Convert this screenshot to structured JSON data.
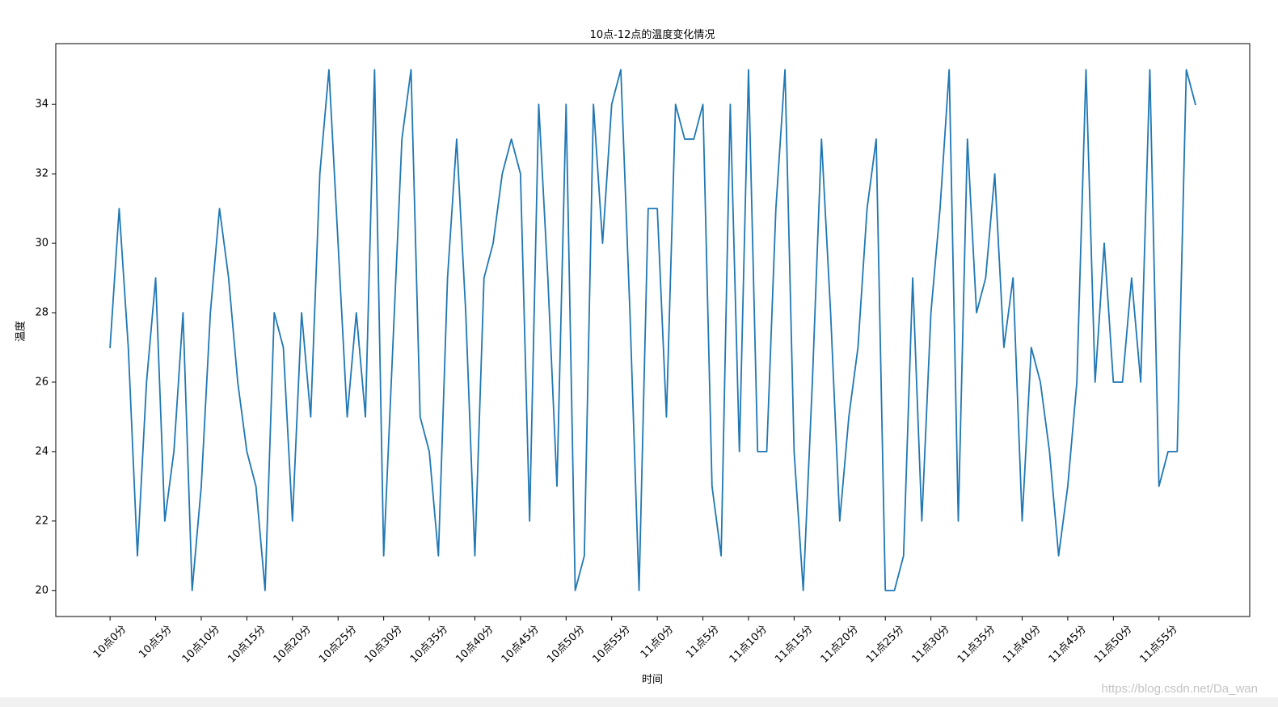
{
  "chart_data": {
    "type": "line",
    "title": "10点-12点的温度变化情况",
    "xlabel": "时间",
    "ylabel": "温度",
    "x_tick_labels": [
      "10点0分",
      "10点5分",
      "10点10分",
      "10点15分",
      "10点20分",
      "10点25分",
      "10点30分",
      "10点35分",
      "10点40分",
      "10点45分",
      "10点50分",
      "10点55分",
      "11点0分",
      "11点5分",
      "11点10分",
      "11点15分",
      "11点20分",
      "11点25分",
      "11点30分",
      "11点35分",
      "11点40分",
      "11点45分",
      "11点50分",
      "11点55分"
    ],
    "yticks": [
      20,
      22,
      24,
      26,
      28,
      30,
      32,
      34
    ],
    "ylim": [
      19.25,
      35.75
    ],
    "grid": false,
    "series": [
      {
        "color": "#1f77b4",
        "values": [
          27,
          31,
          27,
          21,
          26,
          29,
          22,
          24,
          28,
          20,
          23,
          28,
          31,
          29,
          26,
          24,
          23,
          20,
          28,
          27,
          22,
          28,
          25,
          32,
          35,
          30,
          25,
          28,
          25,
          35,
          21,
          27,
          33,
          35,
          25,
          24,
          21,
          29,
          33,
          28,
          21,
          29,
          30,
          32,
          33,
          32,
          22,
          34,
          29,
          23,
          34,
          20,
          21,
          34,
          30,
          34,
          35,
          28,
          20,
          31,
          31,
          25,
          34,
          33,
          33,
          34,
          23,
          21,
          34,
          24,
          35,
          24,
          24,
          31,
          35,
          24,
          20,
          26,
          33,
          28,
          22,
          25,
          27,
          31,
          33,
          20,
          20,
          21,
          29,
          22,
          28,
          31,
          35,
          22,
          33,
          28,
          29,
          32,
          27,
          29,
          22,
          27,
          26,
          24,
          21,
          23,
          26,
          35,
          26,
          30,
          26,
          26,
          29,
          26,
          35,
          23,
          24,
          24,
          35,
          34
        ]
      }
    ]
  },
  "watermark": "https://blog.csdn.net/Da_wan"
}
